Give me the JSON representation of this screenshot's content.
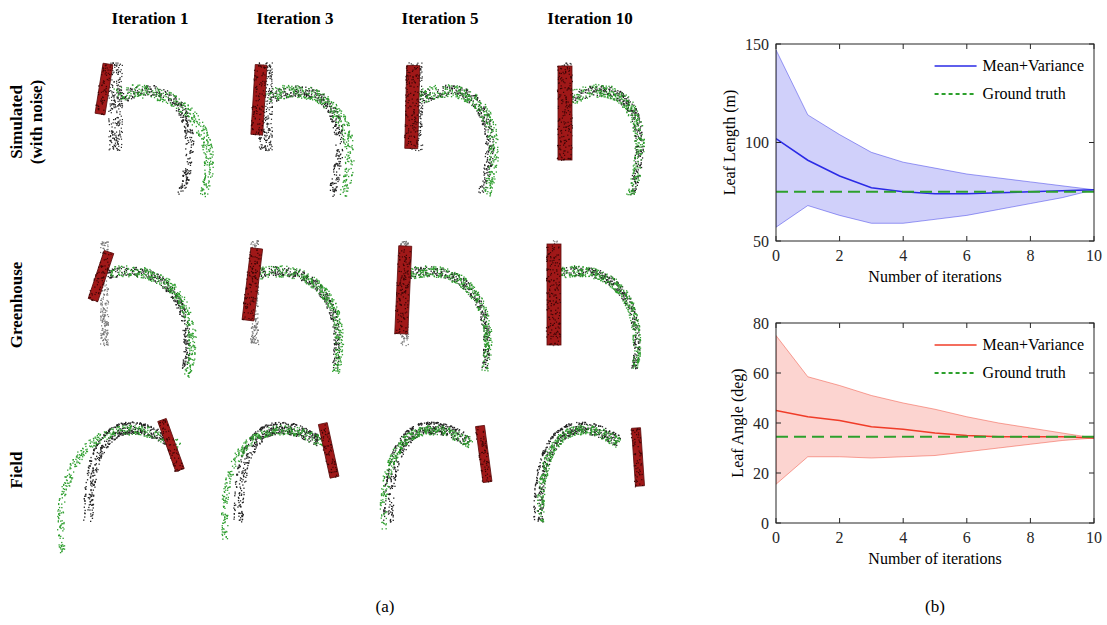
{
  "figure": {
    "columns": [
      "Iteration 1",
      "Iteration 3",
      "Iteration 5",
      "Iteration 10"
    ],
    "rows": [
      "Simulated (with noise)",
      "Greenhouse",
      "Field"
    ],
    "panel_labels": [
      "(a)",
      "(b)"
    ]
  },
  "chart_data": [
    {
      "type": "line",
      "xlabel": "Number of iterations",
      "ylabel": "Leaf Length (m)",
      "x": [
        0,
        1,
        2,
        3,
        4,
        5,
        6,
        7,
        8,
        9,
        10
      ],
      "xlim": [
        0,
        10
      ],
      "xticks": [
        0,
        2,
        4,
        6,
        8,
        10
      ],
      "ylim": [
        50,
        150
      ],
      "yticks": [
        50,
        100,
        150
      ],
      "grid": false,
      "legend": "top-right",
      "series": [
        {
          "name": "Mean+Variance",
          "color": "#2a2ae6",
          "line_style": "solid",
          "values": [
            102,
            91,
            83,
            77,
            75,
            74,
            74,
            74.5,
            75,
            75.5,
            76
          ],
          "upper": [
            147,
            114,
            104,
            95,
            90,
            87,
            84,
            82,
            80,
            78,
            76
          ],
          "lower": [
            57,
            68,
            63,
            59,
            59,
            61,
            63,
            66,
            69,
            72,
            76
          ]
        },
        {
          "name": "Ground truth",
          "color": "#2ca02c",
          "line_style": "dashed",
          "values": [
            75,
            75,
            75,
            75,
            75,
            75,
            75,
            75,
            75,
            75,
            75
          ]
        }
      ]
    },
    {
      "type": "line",
      "xlabel": "Number of iterations",
      "ylabel": "Leaf Angle (deg)",
      "x": [
        0,
        1,
        2,
        3,
        4,
        5,
        6,
        7,
        8,
        9,
        10
      ],
      "xlim": [
        0,
        10
      ],
      "xticks": [
        0,
        2,
        4,
        6,
        8,
        10
      ],
      "ylim": [
        0,
        80
      ],
      "yticks": [
        0,
        20,
        40,
        60,
        80
      ],
      "grid": false,
      "legend": "top-right",
      "series": [
        {
          "name": "Mean+Variance",
          "color": "#f03c28",
          "line_style": "solid",
          "values": [
            45,
            42.5,
            41,
            38.5,
            37.5,
            36,
            35,
            34.5,
            34.5,
            34.5,
            34
          ],
          "upper": [
            75,
            58.5,
            55,
            51,
            48,
            45.5,
            42.5,
            40,
            38,
            36,
            34
          ],
          "lower": [
            15.5,
            26.5,
            26.5,
            26,
            26.5,
            27,
            28.5,
            30,
            31.5,
            33,
            34
          ]
        },
        {
          "name": "Ground truth",
          "color": "#2ca02c",
          "line_style": "dashed",
          "values": [
            34.5,
            34.5,
            34.5,
            34.5,
            34.5,
            34.5,
            34.5,
            34.5,
            34.5,
            34.5,
            34.5
          ]
        }
      ]
    }
  ]
}
